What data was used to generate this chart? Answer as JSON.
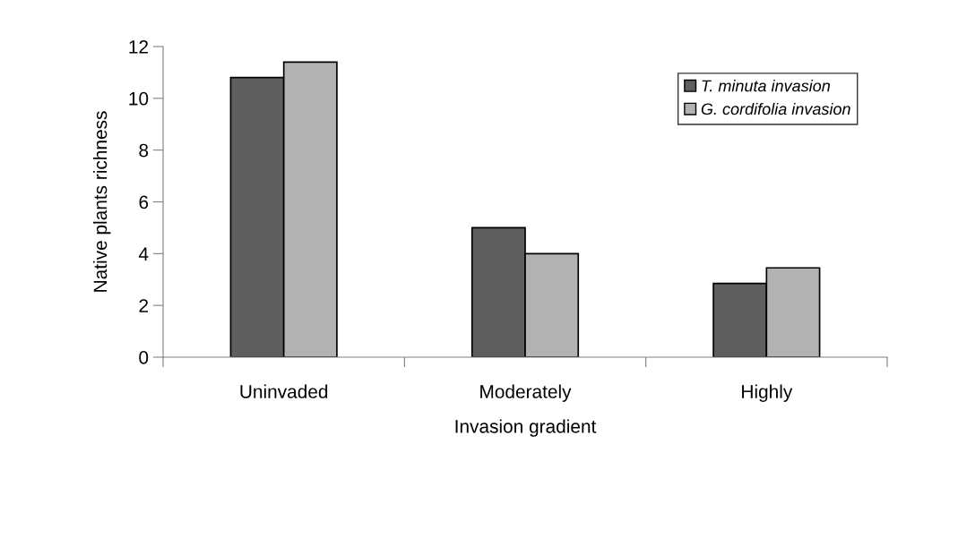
{
  "chart_data": {
    "type": "bar",
    "xlabel": "Invasion gradient",
    "ylabel": "Native plants richness",
    "categories": [
      "Uninvaded",
      "Moderately",
      "Highly"
    ],
    "series": [
      {
        "name": "T. minuta invasion",
        "color": "#5f5f5f",
        "values": [
          10.8,
          5.0,
          2.85
        ]
      },
      {
        "name": "G. cordifolia invasion",
        "color": "#b2b2b2",
        "values": [
          11.4,
          4.0,
          3.45
        ]
      }
    ],
    "ylim": [
      0,
      12
    ],
    "yticks": [
      0,
      2,
      4,
      6,
      8,
      10,
      12
    ],
    "grid": false,
    "legend": "top right"
  }
}
